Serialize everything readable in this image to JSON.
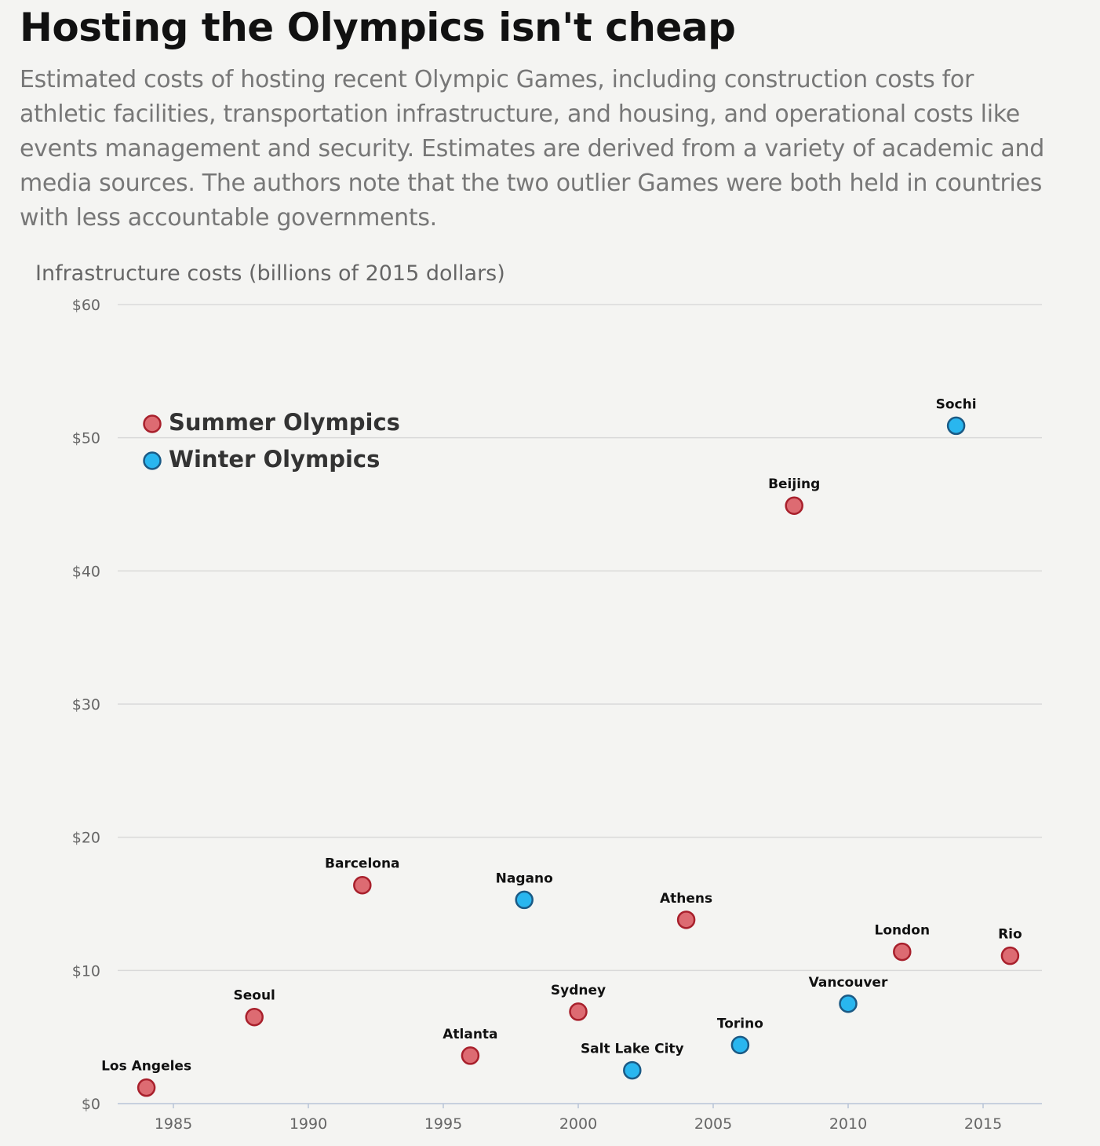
{
  "title": "Hosting the Olympics isn't cheap",
  "subtitle": "Estimated costs of hosting recent Olympic Games, including construction costs for athletic facilities, transportation infrastructure, and housing, and operational costs like events management and security. Estimates are derived from a variety of academic and media sources. The authors note that the two outlier Games were both held in countries with less accountable governments.",
  "chart_data": {
    "type": "scatter",
    "title": "Hosting the Olympics isn't cheap",
    "ylabel": "Infrastructure costs (billions of 2015 dollars)",
    "xlabel": "",
    "xlim": [
      1983,
      2017
    ],
    "ylim": [
      0,
      60
    ],
    "xticks": [
      "1985",
      "1990",
      "1995",
      "2000",
      "2005",
      "2010",
      "2015"
    ],
    "xtick_values": [
      1985,
      1990,
      1995,
      2000,
      2005,
      2010,
      2015
    ],
    "yticks": [
      "$0",
      "$10",
      "$20",
      "$30",
      "$40",
      "$50",
      "$60"
    ],
    "ytick_values": [
      0,
      10,
      20,
      30,
      40,
      50,
      60
    ],
    "grid": "horizontal",
    "legend_placement": "top-left",
    "colors": {
      "summer_fill": "#dd6b72",
      "summer_stroke": "#a8202c",
      "winter_fill": "#29b6ef",
      "winter_stroke": "#1b5a85",
      "grid": "#d9d9d9",
      "axis": "#b8c4d8"
    },
    "series": [
      {
        "name": "Summer Olympics",
        "key": "summer",
        "points": [
          {
            "x": 1984,
            "y": 1.2,
            "label": "Los Angeles"
          },
          {
            "x": 1988,
            "y": 6.5,
            "label": "Seoul"
          },
          {
            "x": 1992,
            "y": 16.4,
            "label": "Barcelona"
          },
          {
            "x": 1996,
            "y": 3.6,
            "label": "Atlanta"
          },
          {
            "x": 2000,
            "y": 6.9,
            "label": "Sydney"
          },
          {
            "x": 2004,
            "y": 13.8,
            "label": "Athens"
          },
          {
            "x": 2008,
            "y": 44.9,
            "label": "Beijing"
          },
          {
            "x": 2012,
            "y": 11.4,
            "label": "London"
          },
          {
            "x": 2016,
            "y": 11.1,
            "label": "Rio"
          }
        ]
      },
      {
        "name": "Winter Olympics",
        "key": "winter",
        "points": [
          {
            "x": 1998,
            "y": 15.3,
            "label": "Nagano"
          },
          {
            "x": 2002,
            "y": 2.5,
            "label": "Salt Lake City"
          },
          {
            "x": 2006,
            "y": 4.4,
            "label": "Torino"
          },
          {
            "x": 2010,
            "y": 7.5,
            "label": "Vancouver"
          },
          {
            "x": 2014,
            "y": 50.9,
            "label": "Sochi"
          }
        ]
      }
    ]
  }
}
